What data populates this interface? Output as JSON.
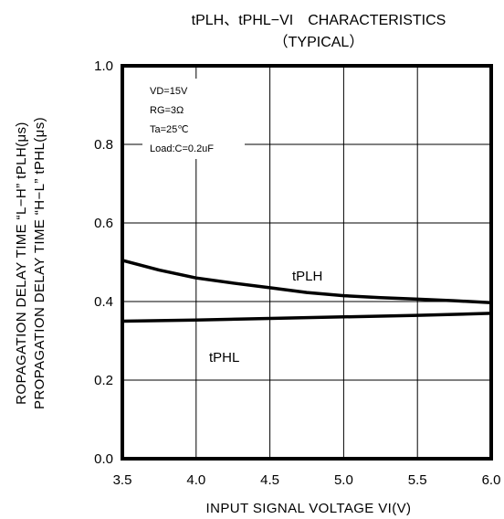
{
  "chart_data": {
    "type": "line",
    "title": "tPLH、tPHL−VI　CHARACTERISTICS",
    "subtitle": "（TYPICAL）",
    "xlabel": "INPUT  SIGNAL  VOLTAGE  VI(V)",
    "ylabel_line1": "ROPAGATION DELAY TIME “L−H”  tPLH(μs)",
    "ylabel_line2": "PROPAGATION DELAY TIME “H−L”  tPHL(μs)",
    "xlim": [
      3.5,
      6.0
    ],
    "ylim": [
      0.0,
      1.0
    ],
    "x_ticks": [
      "3.5",
      "4.0",
      "4.5",
      "5.0",
      "5.5",
      "6.0"
    ],
    "y_ticks": [
      "0.0",
      "0.2",
      "0.4",
      "0.6",
      "0.8",
      "1.0"
    ],
    "grid": true,
    "conditions": [
      "VD=15V",
      "RG=3Ω",
      "Ta=25℃",
      "Load:C=0.2uF"
    ],
    "series": [
      {
        "name": "tPLH",
        "x": [
          3.5,
          3.75,
          4.0,
          4.25,
          4.5,
          4.75,
          5.0,
          5.25,
          5.5,
          5.75,
          6.0
        ],
        "values": [
          0.505,
          0.48,
          0.46,
          0.447,
          0.435,
          0.423,
          0.415,
          0.41,
          0.406,
          0.402,
          0.397
        ]
      },
      {
        "name": "tPHL",
        "x": [
          3.5,
          4.0,
          4.5,
          5.0,
          5.5,
          6.0
        ],
        "values": [
          0.35,
          0.353,
          0.357,
          0.361,
          0.365,
          0.37
        ]
      }
    ]
  }
}
